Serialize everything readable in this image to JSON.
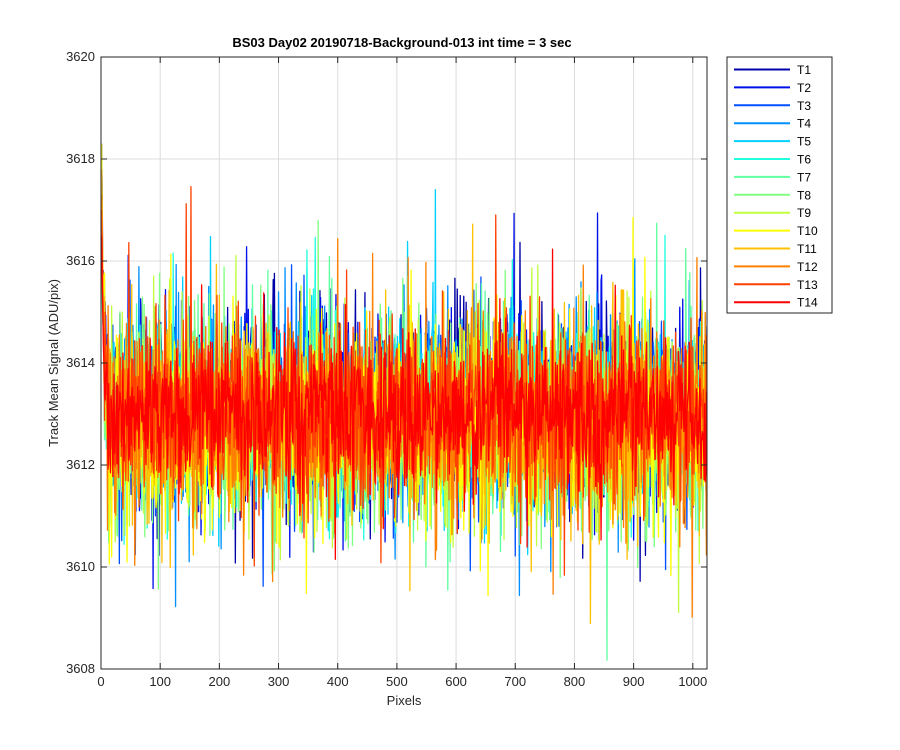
{
  "chart_data": {
    "type": "line",
    "title": "BS03 Day02 20190718-Background-013 int time = 3 sec",
    "xlabel": "Pixels",
    "ylabel": "Track Mean Signal (ADU/pix)",
    "xlim": [
      0,
      1024
    ],
    "ylim": [
      3608,
      3620
    ],
    "x_ticks": [
      0,
      100,
      200,
      300,
      400,
      500,
      600,
      700,
      800,
      900,
      1000
    ],
    "y_ticks": [
      3608,
      3610,
      3612,
      3614,
      3616,
      3618,
      3620
    ],
    "grid": true,
    "legend_position": "outside-top-right",
    "x_range": [
      1,
      1024
    ],
    "series": [
      {
        "name": "T1",
        "color": "#0000a8",
        "mean": 3613.1,
        "std": 0.9,
        "start": 3618.3
      },
      {
        "name": "T2",
        "color": "#0010e8",
        "mean": 3613.1,
        "std": 0.9,
        "start": 3618.0
      },
      {
        "name": "T3",
        "color": "#0050ff",
        "mean": 3613.0,
        "std": 0.85,
        "start": 3617.6
      },
      {
        "name": "T4",
        "color": "#0090ff",
        "mean": 3613.0,
        "std": 0.85,
        "start": 3617.2
      },
      {
        "name": "T5",
        "color": "#00d0ff",
        "mean": 3613.0,
        "std": 0.85,
        "start": 3617.0
      },
      {
        "name": "T6",
        "color": "#20ffe0",
        "mean": 3613.0,
        "std": 0.85,
        "start": 3616.8
      },
      {
        "name": "T7",
        "color": "#60ffa0",
        "mean": 3612.9,
        "std": 0.9,
        "start": 3616.5
      },
      {
        "name": "T8",
        "color": "#80ff80",
        "mean": 3612.8,
        "std": 0.95,
        "start": 3616.4
      },
      {
        "name": "T9",
        "color": "#c0ff40",
        "mean": 3612.8,
        "std": 0.95,
        "start": 3618.0
      },
      {
        "name": "T10",
        "color": "#ffff00",
        "mean": 3612.8,
        "std": 0.9,
        "start": 3618.3
      },
      {
        "name": "T11",
        "color": "#ffc000",
        "mean": 3612.9,
        "std": 0.9,
        "start": 3617.8
      },
      {
        "name": "T12",
        "color": "#ff8000",
        "mean": 3612.9,
        "std": 0.9,
        "start": 3617.3
      },
      {
        "name": "T13",
        "color": "#ff4000",
        "mean": 3613.0,
        "std": 0.85,
        "start": 3617.0
      },
      {
        "name": "T14",
        "color": "#ff0000",
        "mean": 3613.0,
        "std": 0.7,
        "start": 3616.5
      }
    ]
  }
}
